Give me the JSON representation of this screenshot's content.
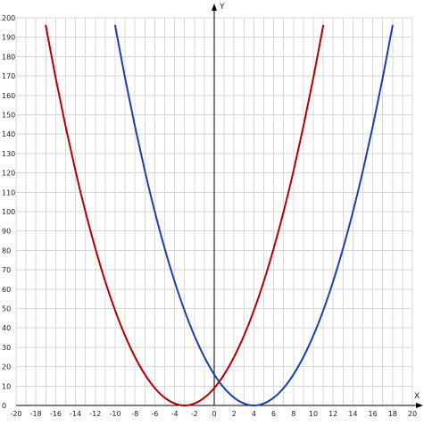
{
  "chart_data": {
    "type": "line",
    "xlabel": "X",
    "ylabel": "Y",
    "xlim": [
      -20,
      20
    ],
    "ylim": [
      0,
      200
    ],
    "x_ticks": [
      -20,
      -18,
      -16,
      -14,
      -12,
      -10,
      -8,
      -6,
      -4,
      -2,
      0,
      2,
      4,
      6,
      8,
      10,
      12,
      14,
      16,
      18,
      20
    ],
    "y_ticks": [
      0,
      10,
      20,
      30,
      40,
      50,
      60,
      70,
      80,
      90,
      100,
      110,
      120,
      130,
      140,
      150,
      160,
      170,
      180,
      190,
      200
    ],
    "grid": true,
    "series": [
      {
        "color": "#b00000",
        "x": [
          -17,
          -16,
          -15,
          -14,
          -13,
          -12,
          -11,
          -10,
          -9,
          -8,
          -7,
          -6,
          -5,
          -4,
          -3,
          -2,
          -1,
          0,
          1,
          2,
          3,
          4,
          5,
          6,
          7,
          8,
          9,
          10,
          11
        ],
        "y": [
          196,
          169,
          144,
          121,
          100,
          81,
          64,
          49,
          36,
          25,
          16,
          9,
          4,
          1,
          0,
          1,
          4,
          9,
          16,
          25,
          36,
          49,
          64,
          81,
          100,
          121,
          144,
          169,
          196
        ]
      },
      {
        "color": "#1a3fa8",
        "x": [
          -10,
          -9,
          -8,
          -7,
          -6,
          -5,
          -4,
          -3,
          -2,
          -1,
          0,
          1,
          2,
          3,
          4,
          5,
          6,
          7,
          8,
          9,
          10,
          11,
          12,
          13,
          14,
          15,
          16,
          17,
          18
        ],
        "y": [
          196,
          169,
          144,
          121,
          100,
          81,
          64,
          49,
          36,
          25,
          16,
          9,
          4,
          1,
          0,
          1,
          4,
          9,
          16,
          25,
          36,
          49,
          64,
          81,
          100,
          121,
          144,
          169,
          196
        ]
      }
    ]
  }
}
